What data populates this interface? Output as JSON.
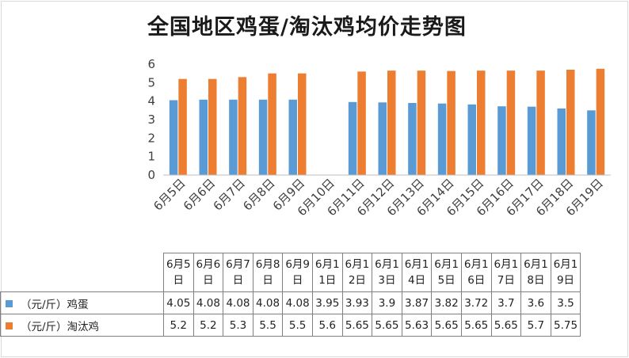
{
  "chart_data": {
    "type": "bar",
    "title": "全国地区鸡蛋/淘汰鸡均价走势图",
    "categories": [
      "6月5日",
      "6月6日",
      "6月7日",
      "6月8日",
      "6月9日",
      "6月10日",
      "6月11日",
      "6月12日",
      "6月13日",
      "6月14日",
      "6月15日",
      "6月16日",
      "6月17日",
      "6月18日",
      "6月19日"
    ],
    "series": [
      {
        "name": "（元/斤）鸡蛋",
        "color": "#5b9bd5",
        "values": [
          4.05,
          4.08,
          4.08,
          4.08,
          4.08,
          null,
          3.95,
          3.93,
          3.9,
          3.87,
          3.82,
          3.72,
          3.7,
          3.6,
          3.5
        ]
      },
      {
        "name": "（元/斤）淘汰鸡",
        "color": "#ed7d31",
        "values": [
          5.2,
          5.2,
          5.3,
          5.5,
          5.5,
          null,
          5.6,
          5.65,
          5.65,
          5.63,
          5.65,
          5.65,
          5.65,
          5.7,
          5.75
        ]
      }
    ],
    "y_ticks": [
      0,
      1,
      2,
      3,
      4,
      5,
      6
    ],
    "ylim": [
      0,
      6
    ],
    "grid": false,
    "table": {
      "headers": [
        "6月5日",
        "6月6日",
        "6月7日",
        "6月8日",
        "6月9日",
        "6月11日",
        "6月12日",
        "6月13日",
        "6月14日",
        "6月15日",
        "6月16日",
        "6月17日",
        "6月18日",
        "6月19日"
      ],
      "rows": [
        {
          "label": "（元/斤）鸡蛋",
          "values": [
            "4.05",
            "4.08",
            "4.08",
            "4.08",
            "4.08",
            "3.95",
            "3.93",
            "3.9",
            "3.87",
            "3.82",
            "3.72",
            "3.7",
            "3.6",
            "3.5"
          ]
        },
        {
          "label": "（元/斤）淘汰鸡",
          "values": [
            "5.2",
            "5.2",
            "5.3",
            "5.5",
            "5.5",
            "5.6",
            "5.65",
            "5.65",
            "5.63",
            "5.65",
            "5.65",
            "5.65",
            "5.7",
            "5.75"
          ]
        }
      ]
    }
  }
}
